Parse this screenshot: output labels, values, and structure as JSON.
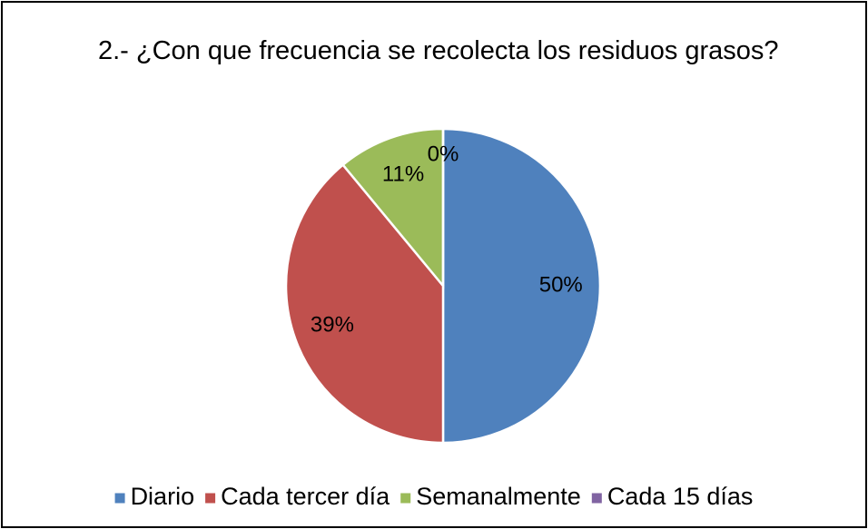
{
  "chart_data": {
    "type": "pie",
    "title": "2.- ¿Con que frecuencia se recolecta los residuos grasos?",
    "categories": [
      "Diario",
      "Cada tercer día",
      "Semanalmente",
      "Cada 15 días"
    ],
    "values": [
      50,
      39,
      11,
      0
    ],
    "value_labels": [
      "50%",
      "39%",
      "11%",
      "0%"
    ],
    "colors": [
      "#4f81bd",
      "#c0504d",
      "#9bbb59",
      "#8064a2"
    ],
    "legend": "bottom"
  }
}
